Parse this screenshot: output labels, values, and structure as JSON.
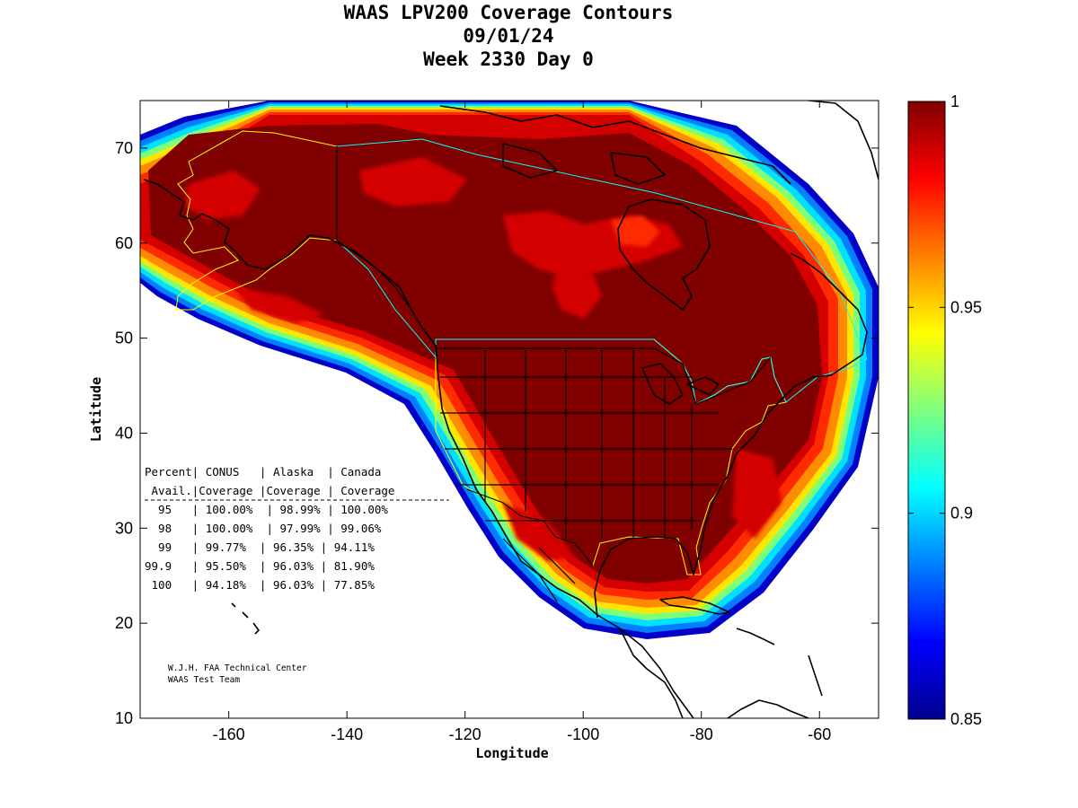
{
  "title": [
    "WAAS LPV200 Coverage Contours",
    "09/01/24",
    "Week 2330 Day 0"
  ],
  "x_axis": {
    "label": "Longitude",
    "range": [
      -175,
      -50
    ],
    "ticks": [
      -160,
      -140,
      -120,
      -100,
      -80,
      -60
    ],
    "tick_labels": [
      "-160",
      "-140",
      "-120",
      "-100",
      "-80",
      "-60"
    ]
  },
  "y_axis": {
    "label": "Latitude",
    "range": [
      10,
      75
    ],
    "ticks": [
      10,
      20,
      30,
      40,
      50,
      60,
      70
    ],
    "tick_labels": [
      "10",
      "20",
      "30",
      "40",
      "50",
      "60",
      "70"
    ]
  },
  "colorbar": {
    "range": [
      0.85,
      1.0
    ],
    "ticks": [
      0.85,
      0.9,
      0.95,
      1.0
    ],
    "tick_labels": [
      "0.85",
      "0.9",
      "0.95",
      "1"
    ],
    "colormap": "jet"
  },
  "stats_table": {
    "header1": "Percent| CONUS   | Alaska  | Canada",
    "header2": " Avail.|Coverage |Coverage | Coverage",
    "rows": [
      "  95   | 100.00%  | 98.99% | 100.00%",
      "  98   | 100.00%  | 97.99% | 99.06%",
      "  99   | 99.77%  | 96.35% | 94.11%",
      "99.9   | 95.50%  | 96.03% | 81.90%",
      " 100   | 94.18%  | 96.03% | 77.85%"
    ]
  },
  "credit": [
    "W.J.H. FAA Technical Center",
    "WAAS Test Team"
  ],
  "colors": {
    "core": "#800000",
    "boundary_alaska_conus": "#ffff00",
    "boundary_canada": "#00ffff",
    "coastline": "#000000"
  }
}
